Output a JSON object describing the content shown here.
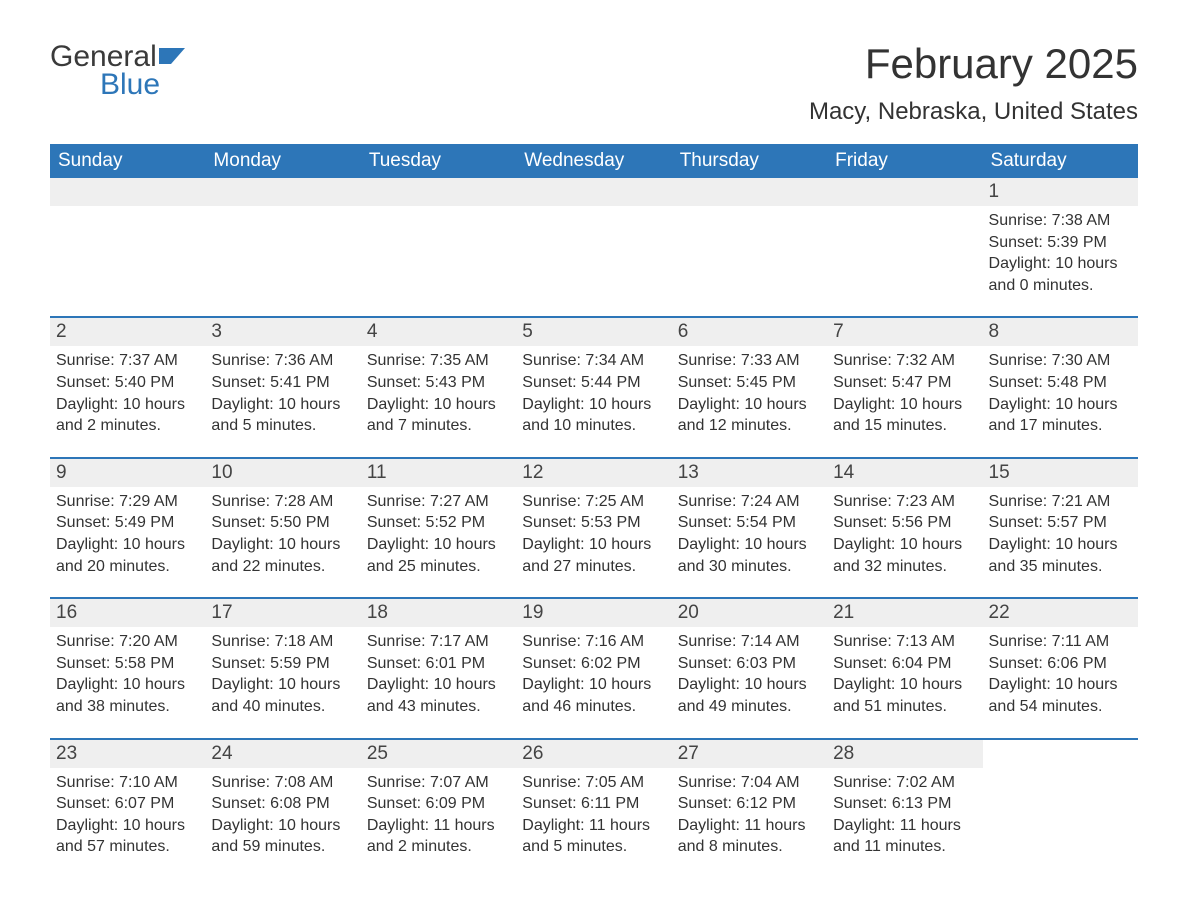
{
  "brand": {
    "word1": "General",
    "word2": "Blue",
    "accent_color": "#2d76b8"
  },
  "title": "February 2025",
  "location": "Macy, Nebraska, United States",
  "weekdays": [
    "Sunday",
    "Monday",
    "Tuesday",
    "Wednesday",
    "Thursday",
    "Friday",
    "Saturday"
  ],
  "colors": {
    "header_bg": "#2d76b8",
    "header_text": "#ffffff",
    "daynum_bg": "#efefef",
    "text": "#333333",
    "row_border": "#2d76b8"
  },
  "weeks": [
    [
      {
        "n": "",
        "sunrise": "",
        "sunset": "",
        "daylight": ""
      },
      {
        "n": "",
        "sunrise": "",
        "sunset": "",
        "daylight": ""
      },
      {
        "n": "",
        "sunrise": "",
        "sunset": "",
        "daylight": ""
      },
      {
        "n": "",
        "sunrise": "",
        "sunset": "",
        "daylight": ""
      },
      {
        "n": "",
        "sunrise": "",
        "sunset": "",
        "daylight": ""
      },
      {
        "n": "",
        "sunrise": "",
        "sunset": "",
        "daylight": ""
      },
      {
        "n": "1",
        "sunrise": "Sunrise: 7:38 AM",
        "sunset": "Sunset: 5:39 PM",
        "daylight": "Daylight: 10 hours and 0 minutes."
      }
    ],
    [
      {
        "n": "2",
        "sunrise": "Sunrise: 7:37 AM",
        "sunset": "Sunset: 5:40 PM",
        "daylight": "Daylight: 10 hours and 2 minutes."
      },
      {
        "n": "3",
        "sunrise": "Sunrise: 7:36 AM",
        "sunset": "Sunset: 5:41 PM",
        "daylight": "Daylight: 10 hours and 5 minutes."
      },
      {
        "n": "4",
        "sunrise": "Sunrise: 7:35 AM",
        "sunset": "Sunset: 5:43 PM",
        "daylight": "Daylight: 10 hours and 7 minutes."
      },
      {
        "n": "5",
        "sunrise": "Sunrise: 7:34 AM",
        "sunset": "Sunset: 5:44 PM",
        "daylight": "Daylight: 10 hours and 10 minutes."
      },
      {
        "n": "6",
        "sunrise": "Sunrise: 7:33 AM",
        "sunset": "Sunset: 5:45 PM",
        "daylight": "Daylight: 10 hours and 12 minutes."
      },
      {
        "n": "7",
        "sunrise": "Sunrise: 7:32 AM",
        "sunset": "Sunset: 5:47 PM",
        "daylight": "Daylight: 10 hours and 15 minutes."
      },
      {
        "n": "8",
        "sunrise": "Sunrise: 7:30 AM",
        "sunset": "Sunset: 5:48 PM",
        "daylight": "Daylight: 10 hours and 17 minutes."
      }
    ],
    [
      {
        "n": "9",
        "sunrise": "Sunrise: 7:29 AM",
        "sunset": "Sunset: 5:49 PM",
        "daylight": "Daylight: 10 hours and 20 minutes."
      },
      {
        "n": "10",
        "sunrise": "Sunrise: 7:28 AM",
        "sunset": "Sunset: 5:50 PM",
        "daylight": "Daylight: 10 hours and 22 minutes."
      },
      {
        "n": "11",
        "sunrise": "Sunrise: 7:27 AM",
        "sunset": "Sunset: 5:52 PM",
        "daylight": "Daylight: 10 hours and 25 minutes."
      },
      {
        "n": "12",
        "sunrise": "Sunrise: 7:25 AM",
        "sunset": "Sunset: 5:53 PM",
        "daylight": "Daylight: 10 hours and 27 minutes."
      },
      {
        "n": "13",
        "sunrise": "Sunrise: 7:24 AM",
        "sunset": "Sunset: 5:54 PM",
        "daylight": "Daylight: 10 hours and 30 minutes."
      },
      {
        "n": "14",
        "sunrise": "Sunrise: 7:23 AM",
        "sunset": "Sunset: 5:56 PM",
        "daylight": "Daylight: 10 hours and 32 minutes."
      },
      {
        "n": "15",
        "sunrise": "Sunrise: 7:21 AM",
        "sunset": "Sunset: 5:57 PM",
        "daylight": "Daylight: 10 hours and 35 minutes."
      }
    ],
    [
      {
        "n": "16",
        "sunrise": "Sunrise: 7:20 AM",
        "sunset": "Sunset: 5:58 PM",
        "daylight": "Daylight: 10 hours and 38 minutes."
      },
      {
        "n": "17",
        "sunrise": "Sunrise: 7:18 AM",
        "sunset": "Sunset: 5:59 PM",
        "daylight": "Daylight: 10 hours and 40 minutes."
      },
      {
        "n": "18",
        "sunrise": "Sunrise: 7:17 AM",
        "sunset": "Sunset: 6:01 PM",
        "daylight": "Daylight: 10 hours and 43 minutes."
      },
      {
        "n": "19",
        "sunrise": "Sunrise: 7:16 AM",
        "sunset": "Sunset: 6:02 PM",
        "daylight": "Daylight: 10 hours and 46 minutes."
      },
      {
        "n": "20",
        "sunrise": "Sunrise: 7:14 AM",
        "sunset": "Sunset: 6:03 PM",
        "daylight": "Daylight: 10 hours and 49 minutes."
      },
      {
        "n": "21",
        "sunrise": "Sunrise: 7:13 AM",
        "sunset": "Sunset: 6:04 PM",
        "daylight": "Daylight: 10 hours and 51 minutes."
      },
      {
        "n": "22",
        "sunrise": "Sunrise: 7:11 AM",
        "sunset": "Sunset: 6:06 PM",
        "daylight": "Daylight: 10 hours and 54 minutes."
      }
    ],
    [
      {
        "n": "23",
        "sunrise": "Sunrise: 7:10 AM",
        "sunset": "Sunset: 6:07 PM",
        "daylight": "Daylight: 10 hours and 57 minutes."
      },
      {
        "n": "24",
        "sunrise": "Sunrise: 7:08 AM",
        "sunset": "Sunset: 6:08 PM",
        "daylight": "Daylight: 10 hours and 59 minutes."
      },
      {
        "n": "25",
        "sunrise": "Sunrise: 7:07 AM",
        "sunset": "Sunset: 6:09 PM",
        "daylight": "Daylight: 11 hours and 2 minutes."
      },
      {
        "n": "26",
        "sunrise": "Sunrise: 7:05 AM",
        "sunset": "Sunset: 6:11 PM",
        "daylight": "Daylight: 11 hours and 5 minutes."
      },
      {
        "n": "27",
        "sunrise": "Sunrise: 7:04 AM",
        "sunset": "Sunset: 6:12 PM",
        "daylight": "Daylight: 11 hours and 8 minutes."
      },
      {
        "n": "28",
        "sunrise": "Sunrise: 7:02 AM",
        "sunset": "Sunset: 6:13 PM",
        "daylight": "Daylight: 11 hours and 11 minutes."
      },
      {
        "n": "",
        "sunrise": "",
        "sunset": "",
        "daylight": "",
        "trailing": true
      }
    ]
  ]
}
